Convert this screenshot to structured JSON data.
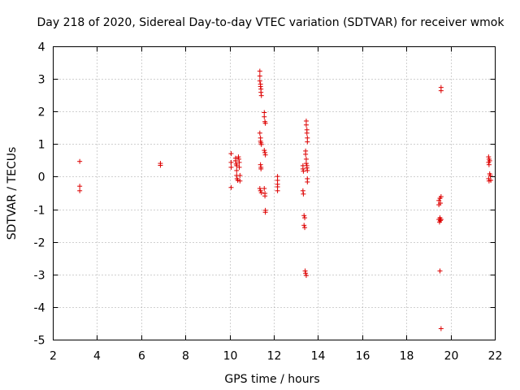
{
  "chart_data": {
    "type": "scatter",
    "title": "Day 218 of 2020, Sidereal Day-to-day VTEC variation (SDTVAR) for receiver wmok",
    "xlabel": "GPS time / hours",
    "ylabel": "SDTVAR / TECUs",
    "xlim": [
      2,
      22
    ],
    "ylim": [
      -5,
      4
    ],
    "xticks": [
      2,
      4,
      6,
      8,
      10,
      12,
      14,
      16,
      18,
      20,
      22
    ],
    "yticks": [
      -5,
      -4,
      -3,
      -2,
      -1,
      0,
      1,
      2,
      3,
      4
    ],
    "grid": true,
    "marker": "+",
    "color": "#dd0000",
    "series": [
      {
        "name": "SDTVAR",
        "points": [
          [
            3.2,
            0.48
          ],
          [
            3.2,
            -0.28
          ],
          [
            3.2,
            -0.42
          ],
          [
            6.85,
            0.42
          ],
          [
            6.85,
            0.36
          ],
          [
            10.05,
            0.72
          ],
          [
            10.05,
            0.45
          ],
          [
            10.05,
            0.3
          ],
          [
            10.05,
            -0.32
          ],
          [
            10.25,
            0.58
          ],
          [
            10.25,
            0.5
          ],
          [
            10.28,
            0.4
          ],
          [
            10.3,
            0.35
          ],
          [
            10.3,
            0.2
          ],
          [
            10.3,
            0.05
          ],
          [
            10.32,
            -0.05
          ],
          [
            10.35,
            -0.1
          ],
          [
            10.38,
            0.62
          ],
          [
            10.4,
            0.55
          ],
          [
            10.42,
            0.45
          ],
          [
            10.42,
            0.3
          ],
          [
            10.45,
            0.05
          ],
          [
            10.45,
            -0.12
          ],
          [
            11.35,
            3.25
          ],
          [
            11.35,
            3.1
          ],
          [
            11.35,
            2.95
          ],
          [
            11.38,
            2.85
          ],
          [
            11.38,
            2.78
          ],
          [
            11.4,
            2.7
          ],
          [
            11.4,
            2.6
          ],
          [
            11.42,
            2.5
          ],
          [
            11.35,
            1.35
          ],
          [
            11.38,
            1.2
          ],
          [
            11.38,
            1.1
          ],
          [
            11.4,
            1.05
          ],
          [
            11.42,
            1.0
          ],
          [
            11.38,
            0.38
          ],
          [
            11.4,
            0.3
          ],
          [
            11.4,
            0.25
          ],
          [
            11.35,
            -0.35
          ],
          [
            11.38,
            -0.42
          ],
          [
            11.42,
            -0.48
          ],
          [
            11.55,
            1.98
          ],
          [
            11.55,
            1.85
          ],
          [
            11.58,
            1.7
          ],
          [
            11.6,
            1.65
          ],
          [
            11.55,
            0.82
          ],
          [
            11.58,
            0.75
          ],
          [
            11.6,
            0.68
          ],
          [
            11.55,
            -0.35
          ],
          [
            11.58,
            -0.5
          ],
          [
            11.58,
            -0.58
          ],
          [
            11.6,
            -1.02
          ],
          [
            11.6,
            -1.08
          ],
          [
            12.15,
            0.02
          ],
          [
            12.15,
            -0.1
          ],
          [
            12.15,
            -0.22
          ],
          [
            12.15,
            -0.3
          ],
          [
            12.15,
            -0.42
          ],
          [
            13.3,
            0.35
          ],
          [
            13.3,
            0.25
          ],
          [
            13.32,
            0.18
          ],
          [
            13.3,
            -0.42
          ],
          [
            13.32,
            -0.52
          ],
          [
            13.35,
            -1.18
          ],
          [
            13.38,
            -1.25
          ],
          [
            13.35,
            -1.48
          ],
          [
            13.38,
            -1.55
          ],
          [
            13.45,
            1.72
          ],
          [
            13.45,
            1.6
          ],
          [
            13.48,
            1.45
          ],
          [
            13.48,
            1.35
          ],
          [
            13.5,
            1.2
          ],
          [
            13.5,
            1.08
          ],
          [
            13.42,
            0.8
          ],
          [
            13.42,
            0.7
          ],
          [
            13.45,
            0.55
          ],
          [
            13.45,
            0.42
          ],
          [
            13.48,
            0.35
          ],
          [
            13.48,
            0.28
          ],
          [
            13.5,
            0.2
          ],
          [
            13.5,
            -0.05
          ],
          [
            13.5,
            -0.15
          ],
          [
            13.4,
            -2.88
          ],
          [
            13.42,
            -2.95
          ],
          [
            13.45,
            -3.02
          ],
          [
            19.45,
            -0.72
          ],
          [
            19.45,
            -0.85
          ],
          [
            19.5,
            -0.65
          ],
          [
            19.52,
            -0.8
          ],
          [
            19.55,
            -0.6
          ],
          [
            19.45,
            -1.3
          ],
          [
            19.48,
            -1.38
          ],
          [
            19.5,
            -1.25
          ],
          [
            19.52,
            -1.33
          ],
          [
            19.55,
            -1.3
          ],
          [
            19.55,
            2.75
          ],
          [
            19.55,
            2.65
          ],
          [
            19.5,
            -2.88
          ],
          [
            19.55,
            -4.65
          ],
          [
            21.7,
            0.62
          ],
          [
            21.72,
            0.55
          ],
          [
            21.75,
            0.5
          ],
          [
            21.7,
            0.45
          ],
          [
            21.72,
            0.38
          ],
          [
            21.75,
            0.1
          ],
          [
            21.7,
            -0.05
          ],
          [
            21.72,
            -0.12
          ],
          [
            21.78,
            0.05
          ],
          [
            21.8,
            -0.1
          ]
        ]
      }
    ]
  }
}
